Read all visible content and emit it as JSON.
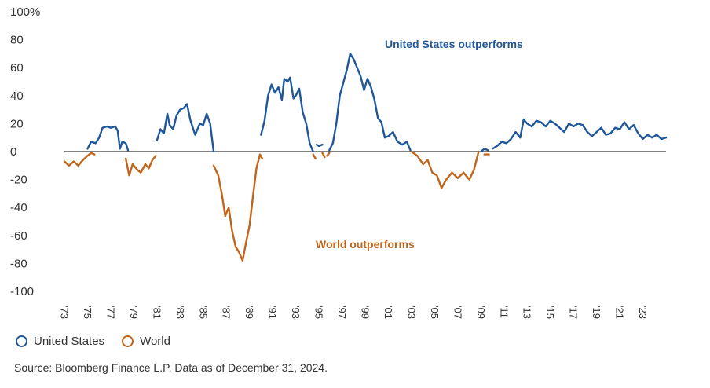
{
  "chart_data": {
    "type": "line",
    "title": "",
    "xlabel": "",
    "ylabel": "",
    "ylim": [
      -100,
      100
    ],
    "xlim": [
      1973.0,
      2025.0
    ],
    "y_ticks": [
      "100%",
      "80",
      "60",
      "40",
      "20",
      "0",
      "-20",
      "-40",
      "-60",
      "-80",
      "-100"
    ],
    "x_ticks": [
      "'73",
      "'75",
      "'77",
      "'79",
      "'81",
      "'83",
      "'85",
      "'87",
      "'89",
      "'91",
      "'93",
      "'95",
      "'97",
      "'99",
      "'01",
      "'03",
      "'05",
      "'07",
      "'09",
      "'11",
      "'13",
      "'15",
      "'17",
      "'19",
      "'21",
      "'23"
    ],
    "annotations": {
      "us": "United States outperforms",
      "world": "World outperforms"
    },
    "colors": {
      "us": "#1f5799",
      "world": "#c0651a",
      "zero": "#333333"
    },
    "series": [
      {
        "name": "United States",
        "key": "us",
        "segments": [
          [
            [
              1975.0,
              2
            ],
            [
              1975.3,
              7
            ],
            [
              1975.7,
              6
            ],
            [
              1976.0,
              10
            ],
            [
              1976.3,
              17
            ],
            [
              1976.7,
              18
            ],
            [
              1977.0,
              17
            ],
            [
              1977.4,
              18
            ],
            [
              1977.6,
              15
            ],
            [
              1977.8,
              2
            ],
            [
              1978.0,
              7
            ],
            [
              1978.3,
              6
            ],
            [
              1978.5,
              1
            ]
          ],
          [
            [
              1981.0,
              8
            ],
            [
              1981.3,
              16
            ],
            [
              1981.6,
              13
            ],
            [
              1981.9,
              27
            ],
            [
              1982.1,
              19
            ],
            [
              1982.4,
              16
            ],
            [
              1982.7,
              26
            ],
            [
              1983.0,
              30
            ],
            [
              1983.3,
              31
            ],
            [
              1983.6,
              34
            ],
            [
              1983.9,
              22
            ],
            [
              1984.3,
              12
            ],
            [
              1984.7,
              20
            ],
            [
              1985.0,
              19
            ],
            [
              1985.3,
              27
            ],
            [
              1985.6,
              20
            ],
            [
              1985.9,
              0
            ]
          ],
          [
            [
              1990.0,
              12
            ],
            [
              1990.3,
              22
            ],
            [
              1990.6,
              40
            ],
            [
              1990.9,
              48
            ],
            [
              1991.2,
              42
            ],
            [
              1991.5,
              46
            ],
            [
              1991.8,
              37
            ],
            [
              1992.0,
              52
            ],
            [
              1992.3,
              50
            ],
            [
              1992.5,
              53
            ],
            [
              1992.8,
              38
            ],
            [
              1993.0,
              40
            ],
            [
              1993.3,
              45
            ],
            [
              1993.6,
              28
            ],
            [
              1993.9,
              20
            ],
            [
              1994.2,
              6
            ],
            [
              1994.5,
              0
            ]
          ],
          [
            [
              1994.8,
              5
            ],
            [
              1995.0,
              4
            ],
            [
              1995.3,
              5
            ]
          ],
          [
            [
              1995.9,
              1
            ],
            [
              1996.2,
              6
            ],
            [
              1996.5,
              20
            ],
            [
              1996.8,
              40
            ],
            [
              1997.1,
              49
            ],
            [
              1997.4,
              58
            ],
            [
              1997.7,
              70
            ],
            [
              1998.0,
              66
            ],
            [
              1998.3,
              60
            ],
            [
              1998.6,
              54
            ],
            [
              1998.9,
              44
            ],
            [
              1999.2,
              52
            ],
            [
              1999.5,
              46
            ],
            [
              1999.8,
              37
            ],
            [
              2000.1,
              24
            ],
            [
              2000.4,
              21
            ],
            [
              2000.7,
              10
            ],
            [
              2001.0,
              11
            ],
            [
              2001.4,
              14
            ],
            [
              2001.8,
              7
            ],
            [
              2002.2,
              5
            ],
            [
              2002.6,
              7
            ],
            [
              2002.9,
              1
            ]
          ],
          [
            [
              2009.0,
              0
            ],
            [
              2009.3,
              2
            ],
            [
              2009.6,
              1
            ]
          ],
          [
            [
              2010.0,
              2
            ],
            [
              2010.4,
              4
            ],
            [
              2010.8,
              7
            ],
            [
              2011.2,
              6
            ],
            [
              2011.6,
              9
            ],
            [
              2012.0,
              14
            ],
            [
              2012.4,
              10
            ],
            [
              2012.7,
              23
            ],
            [
              2013.0,
              20
            ],
            [
              2013.4,
              18
            ],
            [
              2013.8,
              22
            ],
            [
              2014.2,
              21
            ],
            [
              2014.6,
              18
            ],
            [
              2015.0,
              22
            ],
            [
              2015.4,
              20
            ],
            [
              2015.8,
              17
            ],
            [
              2016.2,
              14
            ],
            [
              2016.6,
              20
            ],
            [
              2017.0,
              18
            ],
            [
              2017.4,
              20
            ],
            [
              2017.8,
              19
            ],
            [
              2018.2,
              14
            ],
            [
              2018.6,
              11
            ],
            [
              2019.0,
              14
            ],
            [
              2019.4,
              17
            ],
            [
              2019.8,
              12
            ],
            [
              2020.2,
              13
            ],
            [
              2020.6,
              17
            ],
            [
              2021.0,
              16
            ],
            [
              2021.4,
              21
            ],
            [
              2021.8,
              16
            ],
            [
              2022.2,
              19
            ],
            [
              2022.6,
              13
            ],
            [
              2023.0,
              9
            ],
            [
              2023.4,
              12
            ],
            [
              2023.8,
              10
            ],
            [
              2024.2,
              12
            ],
            [
              2024.6,
              9
            ],
            [
              2025.0,
              10
            ]
          ]
        ]
      },
      {
        "name": "World",
        "key": "world",
        "segments": [
          [
            [
              1973.0,
              -7
            ],
            [
              1973.4,
              -10
            ],
            [
              1973.8,
              -7
            ],
            [
              1974.2,
              -10
            ],
            [
              1974.6,
              -6
            ],
            [
              1975.0,
              -3
            ],
            [
              1975.3,
              -1
            ],
            [
              1975.6,
              -2
            ]
          ],
          [
            [
              1978.3,
              -5
            ],
            [
              1978.6,
              -17
            ],
            [
              1978.9,
              -9
            ],
            [
              1979.3,
              -13
            ],
            [
              1979.6,
              -15
            ],
            [
              1980.0,
              -9
            ],
            [
              1980.3,
              -12
            ],
            [
              1980.6,
              -6
            ],
            [
              1980.9,
              -3
            ]
          ],
          [
            [
              1985.9,
              -10
            ],
            [
              1986.3,
              -17
            ],
            [
              1986.6,
              -30
            ],
            [
              1986.9,
              -46
            ],
            [
              1987.2,
              -40
            ],
            [
              1987.5,
              -57
            ],
            [
              1987.8,
              -68
            ],
            [
              1988.1,
              -72
            ],
            [
              1988.4,
              -78
            ],
            [
              1988.7,
              -65
            ],
            [
              1989.0,
              -53
            ],
            [
              1989.3,
              -32
            ],
            [
              1989.6,
              -12
            ],
            [
              1989.9,
              -2
            ],
            [
              1990.1,
              -5
            ]
          ],
          [
            [
              1994.5,
              -2
            ],
            [
              1994.7,
              -5
            ]
          ],
          [
            [
              1995.3,
              -1
            ],
            [
              1995.5,
              -4
            ]
          ],
          [
            [
              1995.7,
              -3
            ],
            [
              1995.9,
              -1
            ]
          ],
          [
            [
              2003.0,
              0
            ],
            [
              2003.5,
              -3
            ],
            [
              2004.0,
              -9
            ],
            [
              2004.4,
              -6
            ],
            [
              2004.8,
              -15
            ],
            [
              2005.2,
              -17
            ],
            [
              2005.6,
              -26
            ],
            [
              2006.0,
              -20
            ],
            [
              2006.5,
              -15
            ],
            [
              2007.0,
              -19
            ],
            [
              2007.5,
              -15
            ],
            [
              2008.0,
              -20
            ],
            [
              2008.4,
              -13
            ],
            [
              2008.8,
              0
            ]
          ],
          [
            [
              2009.3,
              -2
            ],
            [
              2009.7,
              -2
            ]
          ]
        ]
      }
    ],
    "legend": [
      {
        "label": "United States",
        "key": "us"
      },
      {
        "label": "World",
        "key": "world"
      }
    ]
  },
  "source": "Source: Bloomberg Finance L.P. Data as of December 31, 2024."
}
